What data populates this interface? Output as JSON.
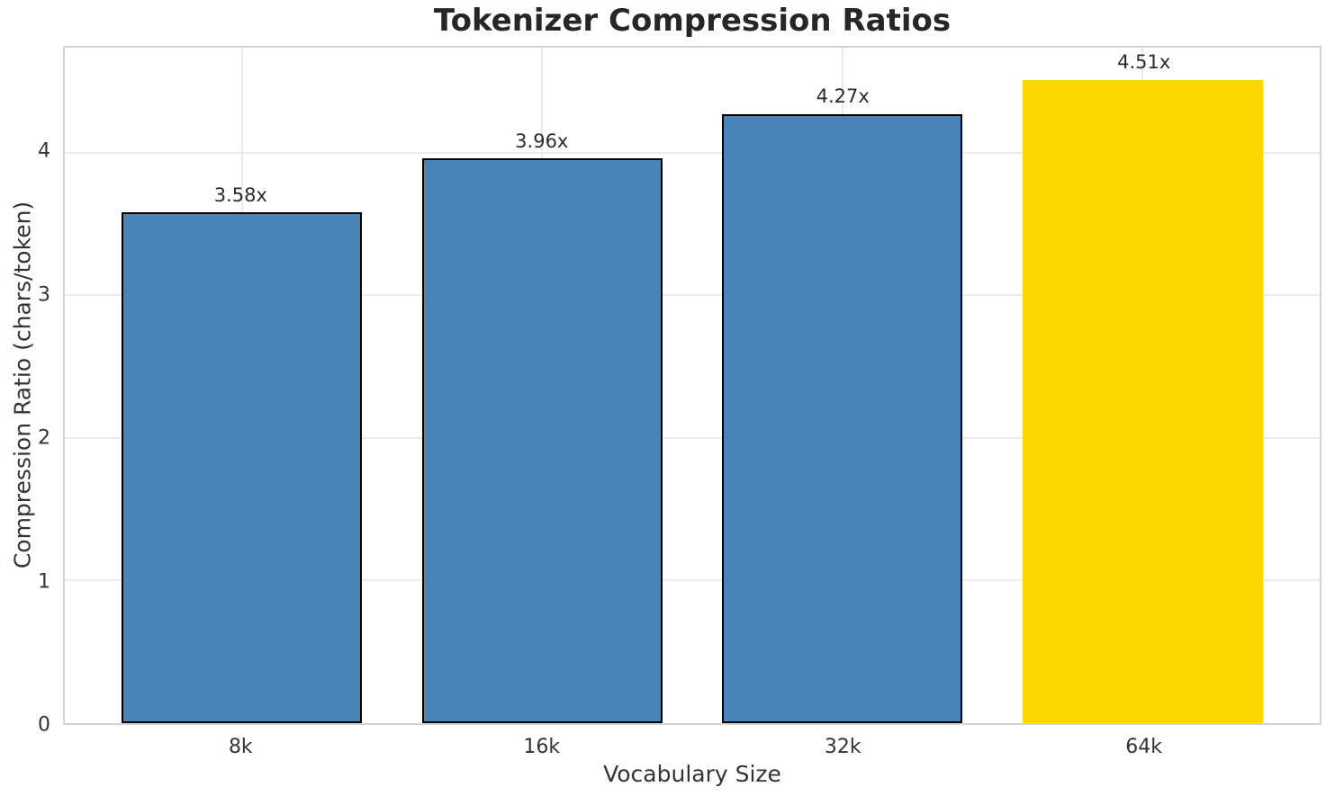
{
  "chart_data": {
    "type": "bar",
    "title": "Tokenizer Compression Ratios",
    "xlabel": "Vocabulary Size",
    "ylabel": "Compression Ratio (chars/token)",
    "categories": [
      "8k",
      "16k",
      "32k",
      "64k"
    ],
    "values": [
      3.58,
      3.96,
      4.27,
      4.51
    ],
    "bar_labels": [
      "3.58x",
      "3.96x",
      "4.27x",
      "4.51x"
    ],
    "bar_colors": [
      "#4884b7",
      "#4884b7",
      "#4884b7",
      "#ffd700"
    ],
    "bar_edge_colors": [
      "#000000",
      "#000000",
      "#000000",
      "none"
    ],
    "highlight_category": "64k",
    "ylim": [
      0,
      4.736
    ],
    "yticks": [
      0,
      1,
      2,
      3,
      4
    ],
    "grid": true,
    "legend": null,
    "grid_color": "#ebebeb",
    "spine_color": "#d4d4d4",
    "title_color": "#262626",
    "text_color": "#333333"
  }
}
